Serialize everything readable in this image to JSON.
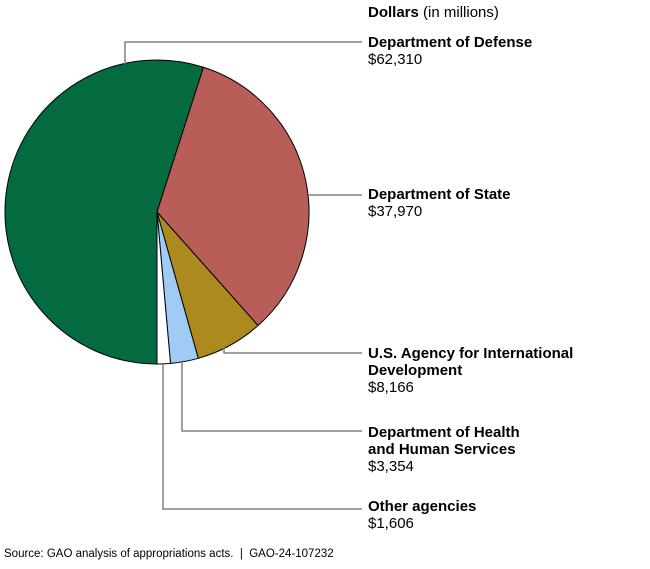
{
  "header": {
    "title_bold": "Dollars",
    "title_suffix": "(in millions)"
  },
  "chart_data": {
    "type": "pie",
    "title": "Dollars (in millions)",
    "start_angle_deg": 180,
    "direction": "clockwise",
    "total": 113406,
    "slices": [
      {
        "id": "defense",
        "label": "Department of Defense",
        "lines": [
          "Department of Defense"
        ],
        "value": 62310,
        "value_label": "$62,310",
        "color": "#046B40"
      },
      {
        "id": "state",
        "label": "Department of State",
        "lines": [
          "Department of State"
        ],
        "value": 37970,
        "value_label": "$37,970",
        "color": "#B85D58"
      },
      {
        "id": "usaid",
        "label": "U.S. Agency for International Development",
        "lines": [
          "U.S. Agency for International",
          "Development"
        ],
        "value": 8166,
        "value_label": "$8,166",
        "color": "#AD8A1D"
      },
      {
        "id": "hhs",
        "label": "Department of Health and Human Services",
        "lines": [
          "Department of Health",
          "and Human Services"
        ],
        "value": 3354,
        "value_label": "$3,354",
        "color": "#9FCBF4"
      },
      {
        "id": "other",
        "label": "Other agencies",
        "lines": [
          "Other agencies"
        ],
        "value": 1606,
        "value_label": "$1,606",
        "color": "#FFFFFF"
      }
    ],
    "leader_line_color": "#808080",
    "outline_color": "#000000",
    "legend_position": "right-labels-with-leader-lines",
    "grid": false
  },
  "footer": {
    "source": "Source: GAO analysis of appropriations acts.  |  GAO-24-107232"
  }
}
